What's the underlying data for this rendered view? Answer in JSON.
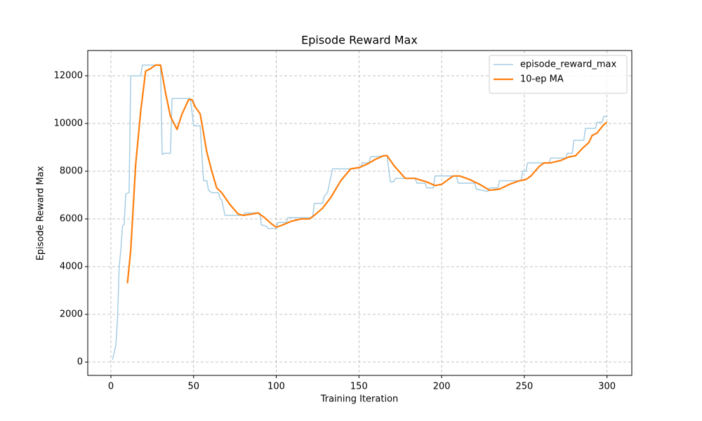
{
  "chart_data": {
    "type": "line",
    "title": "Episode Reward Max",
    "x_label": "Training Iteration",
    "y_label": "Episode Reward Max",
    "xlim": [
      -14,
      315
    ],
    "ylim": [
      -560,
      13060
    ],
    "xticks": [
      0,
      50,
      100,
      150,
      200,
      250,
      300
    ],
    "yticks": [
      0,
      2000,
      4000,
      6000,
      8000,
      10000,
      12000
    ],
    "grid": true,
    "legend": "upper right",
    "series": [
      {
        "name": "episode_reward_max",
        "color": "#a6cee3",
        "width": 1.5,
        "x": [
          1,
          3,
          4,
          5,
          6,
          7,
          8,
          9,
          11,
          12,
          18,
          19,
          30,
          31,
          32,
          36,
          37,
          48,
          50,
          51,
          54,
          56,
          58,
          59,
          61,
          65,
          66,
          67,
          69,
          80,
          81,
          90,
          91,
          94,
          95,
          100,
          101,
          106,
          107,
          122,
          123,
          128,
          129,
          131,
          134,
          147,
          148,
          151,
          152,
          156,
          157,
          167,
          169,
          171,
          172,
          184,
          185,
          190,
          191,
          195,
          196,
          209,
          210,
          220,
          221,
          228,
          229,
          234,
          235,
          248,
          249,
          251,
          252,
          265,
          266,
          275,
          276,
          279,
          280,
          286,
          287,
          293,
          294,
          297,
          298,
          300
        ],
        "values": [
          100,
          700,
          1800,
          4000,
          4700,
          5700,
          5750,
          7050,
          7100,
          12000,
          12000,
          12450,
          12450,
          8700,
          8750,
          8750,
          11050,
          11050,
          9950,
          9900,
          9900,
          7600,
          7600,
          7200,
          7100,
          7100,
          6850,
          6800,
          6150,
          6150,
          6250,
          6250,
          5750,
          5700,
          5600,
          5600,
          5850,
          5850,
          6050,
          6050,
          6650,
          6650,
          6950,
          7100,
          8100,
          8100,
          8150,
          8150,
          8350,
          8350,
          8600,
          8650,
          7550,
          7550,
          7700,
          7700,
          7500,
          7500,
          7300,
          7300,
          7800,
          7800,
          7500,
          7500,
          7250,
          7150,
          7300,
          7300,
          7600,
          7600,
          8000,
          8000,
          8350,
          8350,
          8550,
          8550,
          8750,
          8750,
          9300,
          9300,
          9800,
          9800,
          10050,
          10050,
          10300,
          10300
        ]
      },
      {
        "name": "10-ep MA",
        "color": "#ff7f0e",
        "width": 2.2,
        "x": [
          10,
          12,
          15,
          18,
          21,
          24,
          27,
          30,
          33,
          36,
          40,
          43,
          47,
          49,
          51,
          54,
          58,
          61,
          64,
          67,
          72,
          77,
          80,
          85,
          89,
          93,
          97,
          100,
          104,
          109,
          115,
          120,
          123,
          128,
          133,
          139,
          145,
          150,
          155,
          160,
          165,
          167,
          171,
          178,
          184,
          191,
          196,
          200,
          207,
          211,
          217,
          223,
          229,
          235,
          241,
          247,
          251,
          254,
          259,
          262,
          266,
          272,
          277,
          281,
          285,
          289,
          291,
          294,
          298,
          300
        ],
        "values": [
          3300,
          4700,
          8300,
          10500,
          12200,
          12300,
          12450,
          12450,
          11300,
          10300,
          9750,
          10400,
          11000,
          11000,
          10700,
          10400,
          8800,
          8000,
          7300,
          7100,
          6600,
          6200,
          6150,
          6200,
          6250,
          6050,
          5800,
          5650,
          5750,
          5900,
          6000,
          6000,
          6150,
          6450,
          6900,
          7600,
          8100,
          8150,
          8300,
          8500,
          8650,
          8650,
          8250,
          7700,
          7700,
          7550,
          7400,
          7450,
          7800,
          7800,
          7650,
          7450,
          7200,
          7250,
          7450,
          7600,
          7650,
          7800,
          8200,
          8350,
          8350,
          8450,
          8600,
          8650,
          8950,
          9200,
          9500,
          9600,
          9950,
          10050
        ]
      }
    ]
  }
}
